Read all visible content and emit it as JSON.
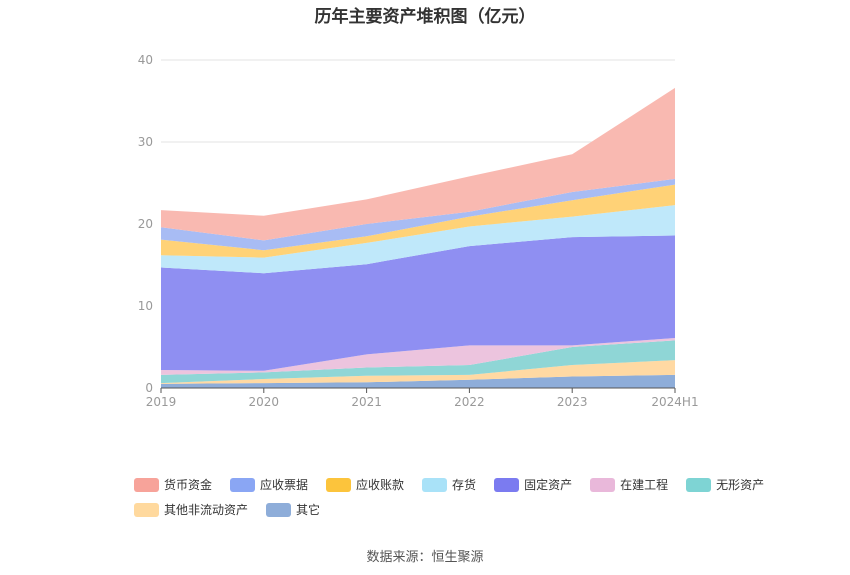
{
  "chart_data": {
    "type": "area",
    "stacked": true,
    "title": "历年主要资产堆积图（亿元）",
    "x": [
      "2019",
      "2020",
      "2021",
      "2022",
      "2023",
      "2024H1"
    ],
    "yticks": [
      "0",
      "10",
      "20",
      "30",
      "40"
    ],
    "ylim": [
      0,
      40
    ],
    "series": [
      {
        "name": "其它",
        "color": "#8eadd9",
        "values": [
          0.5,
          0.6,
          0.7,
          1.0,
          1.4,
          1.6
        ]
      },
      {
        "name": "其他非流动资产",
        "color": "#ffd9a3",
        "values": [
          0.1,
          0.5,
          0.8,
          0.6,
          1.4,
          1.8
        ]
      },
      {
        "name": "无形资产",
        "color": "#8fd6d6",
        "values": [
          1.0,
          0.8,
          1.0,
          1.2,
          2.2,
          2.4
        ]
      },
      {
        "name": "在建工程",
        "color": "#ecc4de",
        "values": [
          0.6,
          0.2,
          1.6,
          2.4,
          0.2,
          0.3
        ]
      },
      {
        "name": "固定资产",
        "color": "#8f8ff2",
        "values": [
          12.5,
          11.9,
          11.0,
          12.1,
          13.2,
          12.5
        ]
      },
      {
        "name": "存货",
        "color": "#bfe8fa",
        "values": [
          1.5,
          1.9,
          2.6,
          2.4,
          2.5,
          3.7
        ]
      },
      {
        "name": "应收账款",
        "color": "#ffd277",
        "values": [
          1.9,
          0.9,
          0.8,
          1.2,
          2.0,
          2.5
        ]
      },
      {
        "name": "应收票据",
        "color": "#a8bcf4",
        "values": [
          1.5,
          1.2,
          1.5,
          0.6,
          1.0,
          0.7
        ]
      },
      {
        "name": "货币资金",
        "color": "#f9b9b1",
        "values": [
          2.1,
          3.0,
          3.0,
          4.3,
          4.6,
          11.1
        ]
      }
    ]
  },
  "legend": [
    [
      {
        "label": "货币资金",
        "color": "#f7a39a"
      },
      {
        "label": "应收票据",
        "color": "#8aa6f4"
      },
      {
        "label": "应收账款",
        "color": "#fcc43c"
      },
      {
        "label": "存货",
        "color": "#a9e2f8"
      },
      {
        "label": "固定资产",
        "color": "#7b7bf0"
      },
      {
        "label": "在建工程",
        "color": "#e9b8da"
      },
      {
        "label": "无形资产",
        "color": "#7ed4d4"
      }
    ],
    [
      {
        "label": "其他非流动资产",
        "color": "#ffd99e"
      },
      {
        "label": "其它",
        "color": "#8eadd9"
      }
    ]
  ],
  "source": "数据来源：恒生聚源"
}
